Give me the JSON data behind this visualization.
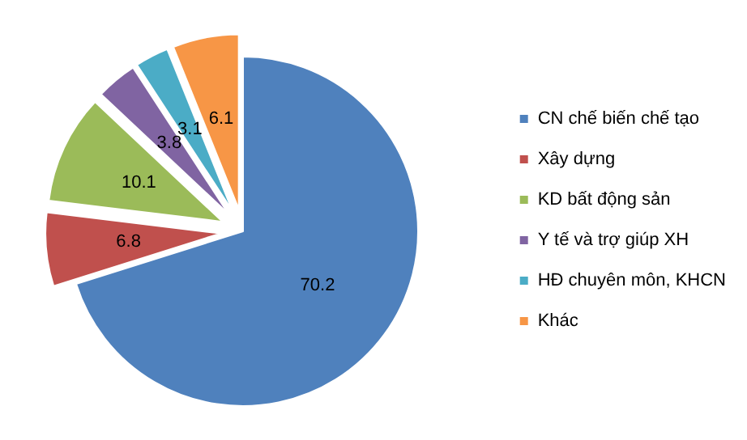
{
  "chart_data": {
    "type": "pie",
    "categories": [
      "CN chế biến chế tạo",
      "Xây dựng",
      "KD bất động sản",
      "Y tế và trợ giúp XH",
      "HĐ chuyên môn, KHCN",
      "Khác"
    ],
    "values": [
      70.2,
      6.8,
      10.1,
      3.8,
      3.1,
      6.1
    ],
    "colors": [
      "#4f81bd",
      "#c0504d",
      "#9bbb59",
      "#8064a2",
      "#4bacc6",
      "#f79646"
    ],
    "data_labels": true,
    "legend": "right"
  }
}
